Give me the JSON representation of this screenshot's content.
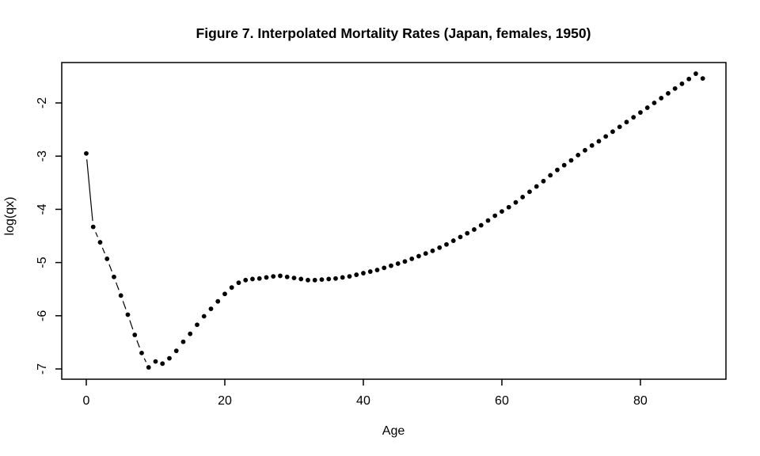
{
  "figure": {
    "background_color": "#ffffff",
    "foreground_color": "#000000"
  },
  "chart_data": {
    "type": "scatter",
    "title": "Figure 7. Interpolated Mortality Rates (Japan, females, 1950)",
    "xlabel": "Age",
    "ylabel": "log(qx)",
    "xlim": [
      -3.54,
      92.35
    ],
    "ylim": [
      -7.193,
      -1.241
    ],
    "x_ticks": [
      0,
      20,
      40,
      60,
      80
    ],
    "x_tick_labels": [
      "0",
      "20",
      "40",
      "60",
      "80"
    ],
    "y_ticks": [
      -2,
      -3,
      -4,
      -5,
      -6,
      -7
    ],
    "y_tick_labels": [
      "-2",
      "-3",
      "-4",
      "-5",
      "-6",
      "-7"
    ],
    "grid": "off",
    "legend": "none",
    "marker": "filled-circle",
    "marker_color": "#000000",
    "line_style": "type-b-segments",
    "x": [
      0,
      1,
      2,
      3,
      4,
      5,
      6,
      7,
      8,
      9,
      10,
      11,
      12,
      13,
      14,
      15,
      16,
      17,
      18,
      19,
      20,
      21,
      22,
      23,
      24,
      25,
      26,
      27,
      28,
      29,
      30,
      31,
      32,
      33,
      34,
      35,
      36,
      37,
      38,
      39,
      40,
      41,
      42,
      43,
      44,
      45,
      46,
      47,
      48,
      49,
      50,
      51,
      52,
      53,
      54,
      55,
      56,
      57,
      58,
      59,
      60,
      61,
      62,
      63,
      64,
      65,
      66,
      67,
      68,
      69,
      70,
      71,
      72,
      73,
      74,
      75,
      76,
      77,
      78,
      79,
      80,
      81,
      82,
      83,
      84,
      85,
      86,
      87,
      88,
      89
    ],
    "y": [
      -2.95,
      -4.33,
      -4.62,
      -4.93,
      -5.27,
      -5.62,
      -5.98,
      -6.36,
      -6.7,
      -6.97,
      -6.86,
      -6.9,
      -6.8,
      -6.66,
      -6.49,
      -6.34,
      -6.17,
      -6.01,
      -5.87,
      -5.73,
      -5.59,
      -5.47,
      -5.38,
      -5.33,
      -5.31,
      -5.3,
      -5.28,
      -5.26,
      -5.25,
      -5.27,
      -5.29,
      -5.31,
      -5.33,
      -5.33,
      -5.32,
      -5.31,
      -5.3,
      -5.28,
      -5.26,
      -5.23,
      -5.2,
      -5.17,
      -5.14,
      -5.1,
      -5.06,
      -5.02,
      -4.98,
      -4.93,
      -4.88,
      -4.83,
      -4.78,
      -4.72,
      -4.66,
      -4.59,
      -4.52,
      -4.45,
      -4.38,
      -4.3,
      -4.21,
      -4.12,
      -4.04,
      -3.96,
      -3.87,
      -3.77,
      -3.67,
      -3.57,
      -3.47,
      -3.36,
      -3.26,
      -3.17,
      -3.08,
      -2.98,
      -2.89,
      -2.8,
      -2.72,
      -2.63,
      -2.54,
      -2.45,
      -2.36,
      -2.27,
      -2.18,
      -2.09,
      -2.0,
      -1.91,
      -1.82,
      -1.73,
      -1.64,
      -1.55,
      -1.45,
      -1.54
    ]
  }
}
